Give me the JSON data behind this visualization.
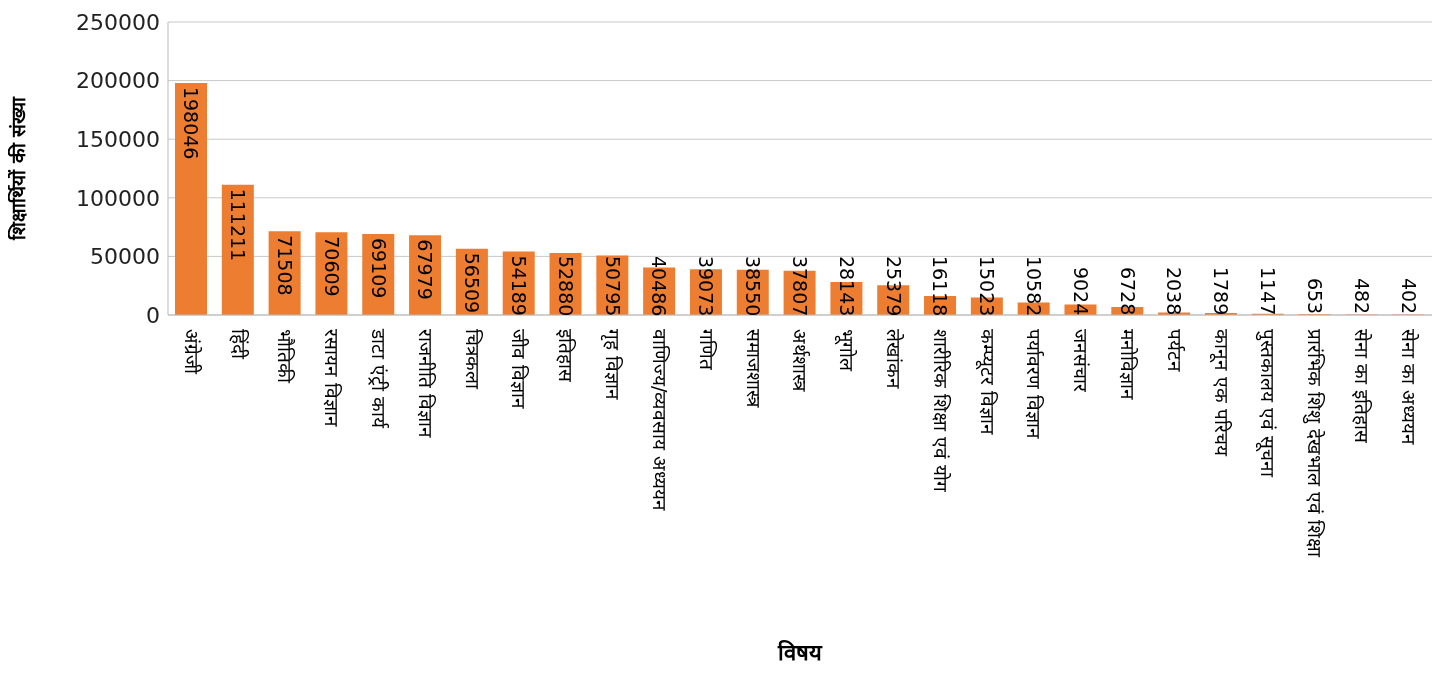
{
  "chart_data": {
    "type": "bar",
    "xlabel": "विषय",
    "ylabel": "शिक्षार्थियों की संख्या",
    "categories": [
      "अंग्रेजी",
      "हिंदी",
      "भौतिकी",
      "रसायन विज्ञान",
      "डाटा एंट्री कार्य",
      "राजनीति विज्ञान",
      "चित्रकला",
      "जीव विज्ञान",
      "इतिहास",
      "गृह विज्ञान",
      "वाणिज्य/व्यवसाय अध्ययन",
      "गणित",
      "समाजशास्त्र",
      "अर्थशास्त्र",
      "भूगोल",
      "लेखांकन",
      "शारीरिक शिक्षा एवं योग",
      "कम्प्यूटर विज्ञान",
      "पर्यावरण विज्ञान",
      "जनसंचार",
      "मनोविज्ञान",
      "पर्यटन",
      "कानून एक परिचय",
      "पुस्तकालय एवं सूचना",
      "प्रारंभिक शिशु देखभाल एवं शिक्षा",
      "सेना का इतिहास",
      "सेना का अध्ययन"
    ],
    "values": [
      198046,
      111211,
      71508,
      70609,
      69109,
      67979,
      56509,
      54189,
      52880,
      50795,
      40486,
      39073,
      38550,
      37807,
      28143,
      25379,
      16118,
      15023,
      10582,
      9024,
      6728,
      2038,
      1789,
      1147,
      653,
      482,
      402
    ],
    "color": "#ed7d31",
    "ylim": [
      0,
      250000
    ],
    "yticks": [
      0,
      50000,
      100000,
      150000,
      200000,
      250000
    ],
    "grid": "y",
    "data_labels": true
  }
}
